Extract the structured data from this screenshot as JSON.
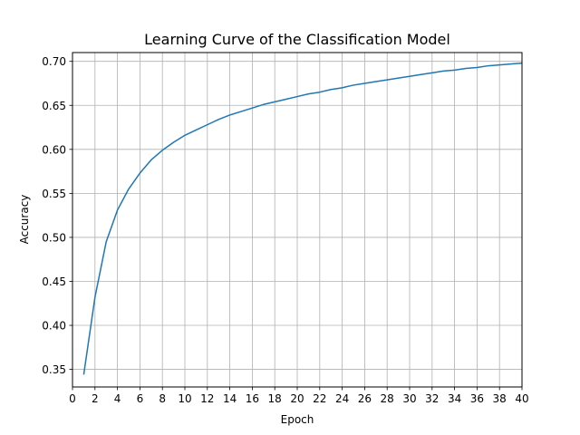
{
  "chart_data": {
    "type": "line",
    "title": "Learning Curve of the Classification Model",
    "xlabel": "Epoch",
    "ylabel": "Accuracy",
    "xlim": [
      0,
      40
    ],
    "ylim": [
      0.33,
      0.71
    ],
    "xticks": [
      0,
      2,
      4,
      6,
      8,
      10,
      12,
      14,
      16,
      18,
      20,
      22,
      24,
      26,
      28,
      30,
      32,
      34,
      36,
      38,
      40
    ],
    "yticks": [
      0.35,
      0.4,
      0.45,
      0.5,
      0.55,
      0.6,
      0.65,
      0.7
    ],
    "grid": true,
    "color": "#1f77b4",
    "series": [
      {
        "x": [
          1,
          2,
          3,
          4,
          5,
          6,
          7,
          8,
          9,
          10,
          11,
          12,
          13,
          14,
          15,
          16,
          17,
          18,
          19,
          20,
          21,
          22,
          23,
          24,
          25,
          26,
          27,
          28,
          29,
          30,
          31,
          32,
          33,
          34,
          35,
          36,
          37,
          38,
          39,
          40
        ],
        "values": [
          0.344,
          0.432,
          0.495,
          0.531,
          0.555,
          0.573,
          0.588,
          0.599,
          0.608,
          0.616,
          0.622,
          0.628,
          0.634,
          0.639,
          0.643,
          0.647,
          0.651,
          0.654,
          0.657,
          0.66,
          0.663,
          0.665,
          0.668,
          0.67,
          0.673,
          0.675,
          0.677,
          0.679,
          0.681,
          0.683,
          0.685,
          0.687,
          0.689,
          0.69,
          0.692,
          0.693,
          0.695,
          0.696,
          0.697,
          0.698
        ]
      }
    ]
  }
}
